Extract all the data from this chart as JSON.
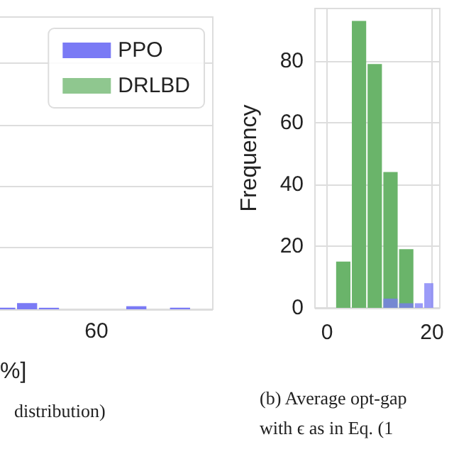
{
  "chart_data": [
    {
      "type": "bar",
      "xlabel": "%]",
      "categories": [
        null,
        null,
        null,
        null,
        null,
        null,
        null,
        null,
        null,
        null
      ],
      "ylim": [
        0,
        95
      ],
      "yticks": [
        0,
        20,
        40,
        60,
        80
      ],
      "tick_labels": false,
      "grid": "y",
      "legend": "top right",
      "series": [
        {
          "name": "PPO",
          "color": "#7a7af5",
          "values": [
            0.5,
            2,
            0.5,
            null,
            null,
            null,
            1,
            null,
            0.5,
            null
          ]
        },
        {
          "name": "DRLBD",
          "color": "#6ab46a",
          "values": [
            null,
            null,
            null,
            null,
            null,
            null,
            null,
            null,
            null,
            null
          ]
        }
      ],
      "annotations": [
        "60",
        "distribution)"
      ]
    },
    {
      "type": "histogram",
      "ylabel": "Frequency",
      "xlim": [
        -2.3,
        21.5
      ],
      "xticks": [
        0,
        20
      ],
      "ylim": [
        0,
        97
      ],
      "yticks": [
        0,
        20,
        40,
        60,
        80
      ],
      "grid": true,
      "bins": [
        1.6,
        4.6,
        7.6,
        10.6,
        13.6,
        16.6,
        18.4,
        20.4
      ],
      "series": [
        {
          "color": "#6ab46a",
          "values": [
            15,
            93,
            79,
            44,
            19,
            null,
            null
          ]
        },
        {
          "color": "#7a7af5",
          "values": [
            null,
            null,
            null,
            3,
            1.5,
            1.5,
            8
          ]
        }
      ],
      "annotations": [
        "(b) Average opt-gap",
        "with ϵ as in Eq. (1"
      ]
    }
  ]
}
